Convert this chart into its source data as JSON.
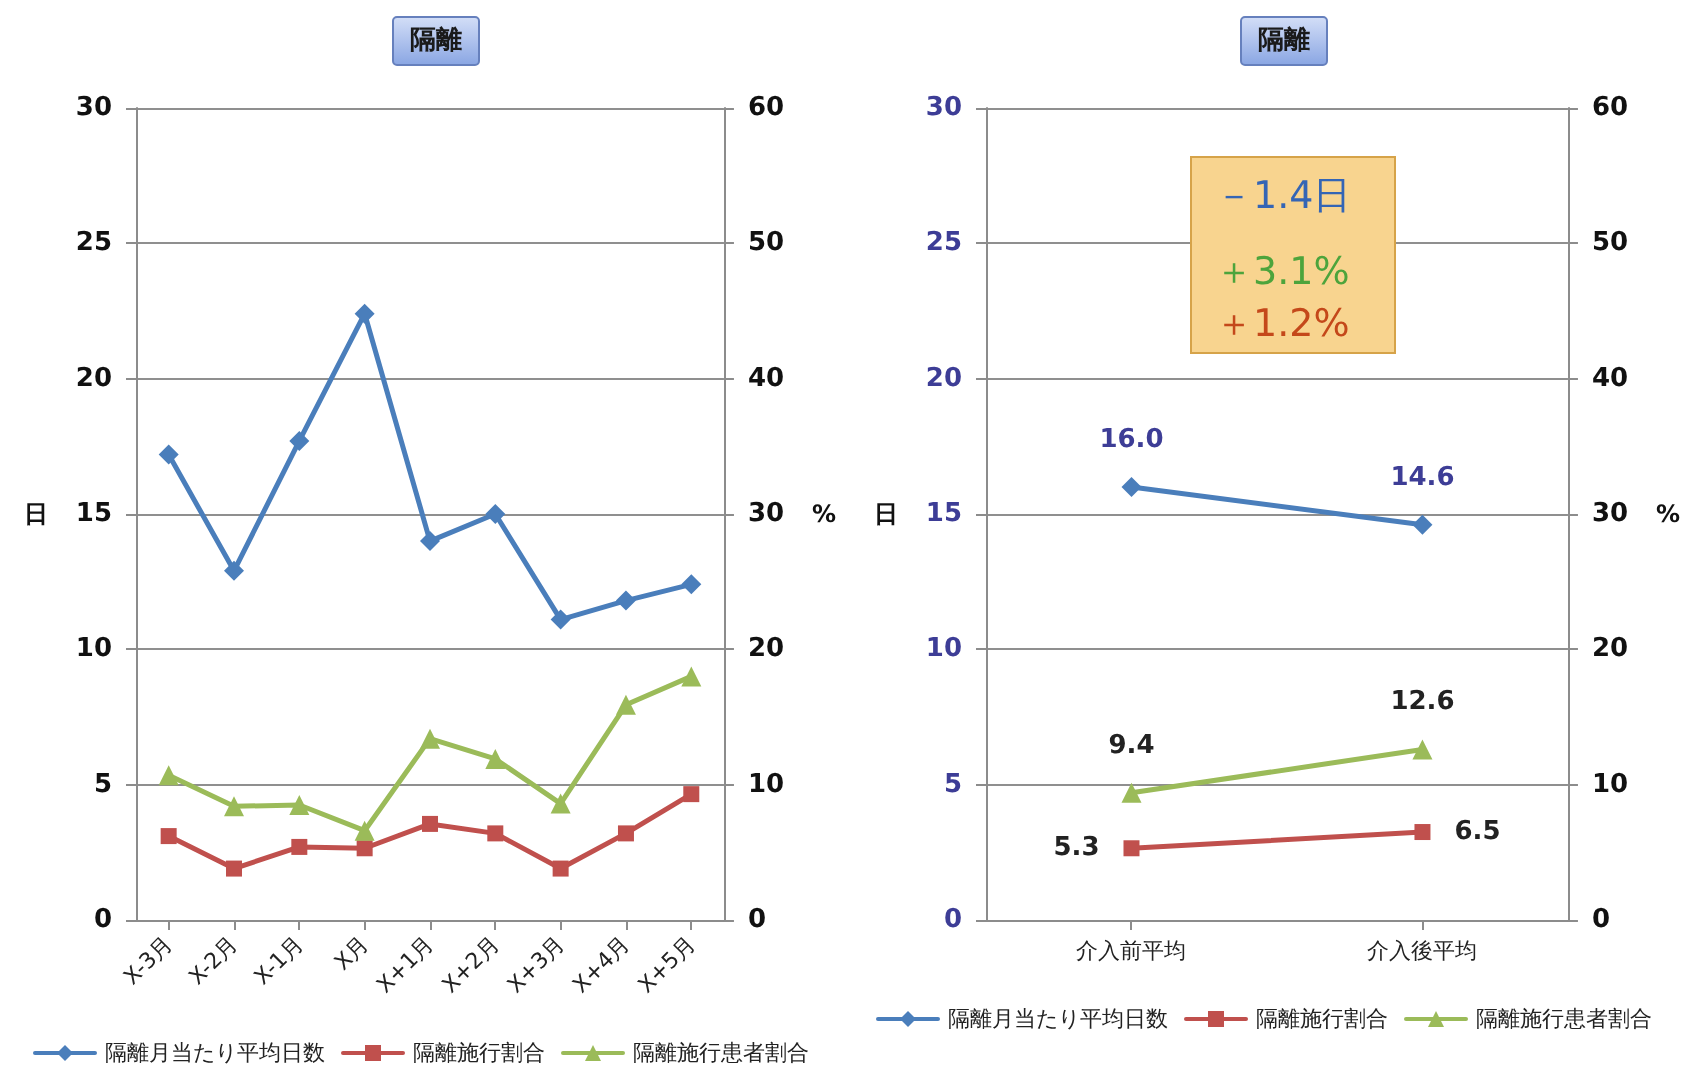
{
  "chart_data": [
    {
      "type": "line",
      "title": "隔離",
      "ylabel": "日",
      "y2label": "%",
      "categories": [
        "X-3月",
        "X-2月",
        "X-1月",
        "X月",
        "X+1月",
        "X+2月",
        "X+3月",
        "X+4月",
        "X+5月"
      ],
      "series": [
        {
          "name": "隔離月当たり平均日数",
          "color": "#4a7ebb",
          "marker": "diamond",
          "values": [
            17.2,
            12.9,
            17.7,
            22.4,
            14.0,
            15.0,
            11.1,
            11.8,
            12.4
          ]
        },
        {
          "name": "隔離施行割合",
          "color": "#c0504d",
          "marker": "square",
          "axis": "y2",
          "values": [
            6.2,
            3.8,
            5.4,
            5.3,
            7.1,
            6.4,
            3.8,
            6.4,
            9.3
          ]
        },
        {
          "name": "隔離施行患者割合",
          "color": "#9bbb59",
          "marker": "triangle",
          "axis": "y2",
          "values": [
            10.7,
            8.4,
            8.5,
            6.6,
            13.4,
            11.9,
            8.6,
            15.9,
            18.0
          ]
        }
      ],
      "ylim": [
        0,
        30
      ],
      "yticks": [
        0,
        5,
        10,
        15,
        20,
        25,
        30
      ],
      "y2lim": [
        0,
        60
      ],
      "y2ticks": [
        0,
        10,
        20,
        30,
        40,
        50,
        60
      ],
      "grid": "y",
      "legend": "bottom"
    },
    {
      "type": "line",
      "title": "隔離",
      "ylabel": "日",
      "y2label": "%",
      "categories": [
        "介入前平均",
        "介入後平均"
      ],
      "series": [
        {
          "name": "隔離月当たり平均日数",
          "color": "#4a7ebb",
          "marker": "diamond",
          "values": [
            16.0,
            14.6
          ],
          "value_labels": [
            "16.0",
            "14.6"
          ]
        },
        {
          "name": "隔離施行割合",
          "color": "#c0504d",
          "marker": "square",
          "axis": "y2",
          "values": [
            5.3,
            6.5
          ],
          "value_labels": [
            "5.3",
            "6.5"
          ]
        },
        {
          "name": "隔離施行患者割合",
          "color": "#9bbb59",
          "marker": "triangle",
          "axis": "y2",
          "values": [
            9.4,
            12.6
          ],
          "value_labels": [
            "9.4",
            "12.6"
          ]
        }
      ],
      "ylim": [
        0,
        30
      ],
      "yticks": [
        0,
        5,
        10,
        15,
        20,
        25,
        30
      ],
      "y2lim": [
        0,
        60
      ],
      "y2ticks": [
        0,
        10,
        20,
        30,
        40,
        50,
        60
      ],
      "grid": "y",
      "legend": "bottom",
      "annotations": [
        "－1.4日",
        "＋3.1%",
        "＋1.2%"
      ]
    }
  ]
}
